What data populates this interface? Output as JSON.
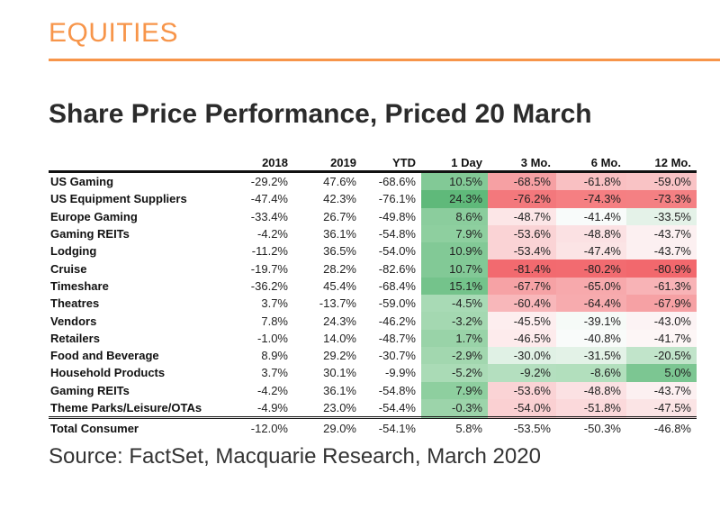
{
  "header": {
    "section": "EQUITIES",
    "accent_color": "#f7954a"
  },
  "title": "Share Price Performance, Priced 20 March",
  "table": {
    "columns": [
      "",
      "2018",
      "2019",
      "YTD",
      "1 Day",
      "3 Mo.",
      "6 Mo.",
      "12 Mo."
    ],
    "rows": [
      {
        "name": "US Gaming",
        "v": [
          "-29.2%",
          "47.6%",
          "-68.6%",
          "10.5%",
          "-68.5%",
          "-61.8%",
          "-59.0%"
        ],
        "bg": [
          "",
          "",
          "",
          "#82c996",
          "#f6a0a3",
          "#f9c0c2",
          "#f9c3c5"
        ]
      },
      {
        "name": "US Equipment Suppliers",
        "v": [
          "-47.4%",
          "42.3%",
          "-76.1%",
          "24.3%",
          "-76.2%",
          "-74.3%",
          "-73.3%"
        ],
        "bg": [
          "",
          "",
          "",
          "#5fb97a",
          "#f3787c",
          "#f57f82",
          "#f48083"
        ]
      },
      {
        "name": "Europe Gaming",
        "v": [
          "-33.4%",
          "26.7%",
          "-49.8%",
          "8.6%",
          "-48.7%",
          "-41.4%",
          "-33.5%"
        ],
        "bg": [
          "",
          "",
          "",
          "#8bcd9d",
          "#fce6e7",
          "#f8fbfa",
          "#e4f2e8"
        ]
      },
      {
        "name": "Gaming REITs",
        "v": [
          "-4.2%",
          "36.1%",
          "-54.8%",
          "7.9%",
          "-53.6%",
          "-48.8%",
          "-43.7%"
        ],
        "bg": [
          "",
          "",
          "",
          "#8ecf9f",
          "#fad3d5",
          "#fbe1e3",
          "#fcf0f1"
        ]
      },
      {
        "name": "Lodging",
        "v": [
          "-11.2%",
          "36.5%",
          "-54.0%",
          "10.9%",
          "-53.4%",
          "-47.4%",
          "-43.7%"
        ],
        "bg": [
          "",
          "",
          "",
          "#82c996",
          "#fad3d5",
          "#fbe4e5",
          "#fcf0f1"
        ]
      },
      {
        "name": "Cruise",
        "v": [
          "-19.7%",
          "28.2%",
          "-82.6%",
          "10.7%",
          "-81.4%",
          "-80.2%",
          "-80.9%"
        ],
        "bg": [
          "",
          "",
          "",
          "#82c996",
          "#f26a6f",
          "#f26b70",
          "#f2686d"
        ]
      },
      {
        "name": "Timeshare",
        "v": [
          "-36.2%",
          "45.4%",
          "-68.4%",
          "15.1%",
          "-67.7%",
          "-65.0%",
          "-61.3%"
        ],
        "bg": [
          "",
          "",
          "",
          "#74c38b",
          "#f6a2a5",
          "#f7a9ac",
          "#f8b3b6"
        ]
      },
      {
        "name": "Theatres",
        "v": [
          "3.7%",
          "-13.7%",
          "-59.0%",
          "-4.5%",
          "-60.4%",
          "-64.4%",
          "-67.9%"
        ],
        "bg": [
          "",
          "",
          "",
          "#a8dab5",
          "#f8b7ba",
          "#f7abae",
          "#f6a1a4"
        ]
      },
      {
        "name": "Vendors",
        "v": [
          "7.8%",
          "24.3%",
          "-46.2%",
          "-3.2%",
          "-45.5%",
          "-39.1%",
          "-43.0%"
        ],
        "bg": [
          "",
          "",
          "",
          "#a4d8b1",
          "#fdeeef",
          "#f6faf7",
          "#fcf3f4"
        ]
      },
      {
        "name": "Retailers",
        "v": [
          "-1.0%",
          "14.0%",
          "-48.7%",
          "1.7%",
          "-46.5%",
          "-40.8%",
          "-41.7%"
        ],
        "bg": [
          "",
          "",
          "",
          "#99d3a8",
          "#fdebec",
          "#f9fbfa",
          "#fdf6f6"
        ]
      },
      {
        "name": "Food and Beverage",
        "v": [
          "8.9%",
          "29.2%",
          "-30.7%",
          "-2.9%",
          "-30.0%",
          "-31.5%",
          "-20.5%"
        ],
        "bg": [
          "",
          "",
          "",
          "#a2d7af",
          "#e0f1e5",
          "#e3f2e7",
          "#c1e4ca"
        ]
      },
      {
        "name": "Household Products",
        "v": [
          "3.7%",
          "30.1%",
          "-9.9%",
          "-5.2%",
          "-9.2%",
          "-8.6%",
          "5.0%"
        ],
        "bg": [
          "",
          "",
          "",
          "#aadbb6",
          "#b4dfbf",
          "#b2dfbd",
          "#7cc692"
        ]
      },
      {
        "name": "Gaming REITs",
        "v": [
          "-4.2%",
          "36.1%",
          "-54.8%",
          "7.9%",
          "-53.6%",
          "-48.8%",
          "-43.7%"
        ],
        "bg": [
          "",
          "",
          "",
          "#8ecf9f",
          "#fad3d5",
          "#fbe1e3",
          "#fcf0f1"
        ]
      },
      {
        "name": "Theme Parks/Leisure/OTAs",
        "v": [
          "-4.9%",
          "23.0%",
          "-54.4%",
          "-0.3%",
          "-54.0%",
          "-51.8%",
          "-47.5%"
        ],
        "bg": [
          "",
          "",
          "",
          "#9cd4aa",
          "#fad0d2",
          "#fbd9db",
          "#fbe4e5"
        ]
      }
    ],
    "total": {
      "name": "Total Consumer",
      "v": [
        "-12.0%",
        "29.0%",
        "-54.1%",
        "5.8%",
        "-53.5%",
        "-50.3%",
        "-46.8%"
      ]
    }
  },
  "source": "Source: FactSet, Macquarie Research, March 2020"
}
